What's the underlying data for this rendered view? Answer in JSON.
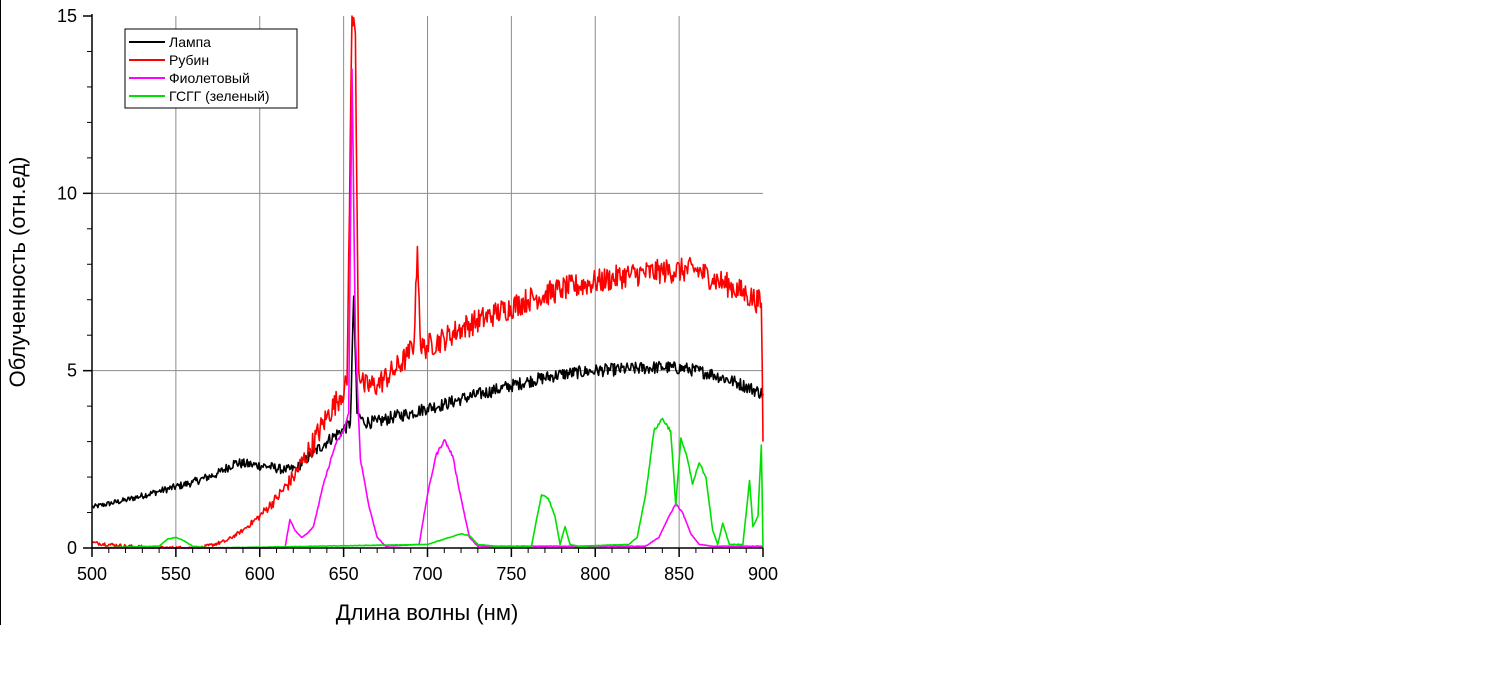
{
  "chart_data": {
    "type": "line",
    "title": "",
    "xlabel": "Длина волны (нм)",
    "ylabel": "Облученность (отн.ед)",
    "xlim": [
      500,
      900
    ],
    "ylim": [
      0,
      15
    ],
    "x_ticks": [
      "500",
      "550",
      "600",
      "650",
      "700",
      "750",
      "800",
      "850",
      "900"
    ],
    "y_ticks": [
      "0",
      "5",
      "10",
      "15"
    ],
    "grid": true,
    "legend_position": "top-left",
    "series": [
      {
        "name": "Лампа",
        "color": "#000000",
        "noise": 0.18,
        "points": [
          [
            500,
            1.15
          ],
          [
            520,
            1.35
          ],
          [
            540,
            1.6
          ],
          [
            560,
            1.85
          ],
          [
            575,
            2.1
          ],
          [
            585,
            2.4
          ],
          [
            595,
            2.35
          ],
          [
            605,
            2.3
          ],
          [
            615,
            2.2
          ],
          [
            622,
            2.25
          ],
          [
            630,
            2.6
          ],
          [
            640,
            3.0
          ],
          [
            650,
            3.35
          ],
          [
            654,
            3.5
          ],
          [
            656,
            7.1
          ],
          [
            658,
            3.8
          ],
          [
            662,
            3.55
          ],
          [
            670,
            3.55
          ],
          [
            680,
            3.7
          ],
          [
            690,
            3.8
          ],
          [
            700,
            3.95
          ],
          [
            710,
            4.05
          ],
          [
            720,
            4.2
          ],
          [
            740,
            4.45
          ],
          [
            760,
            4.7
          ],
          [
            780,
            4.9
          ],
          [
            800,
            5.0
          ],
          [
            820,
            5.05
          ],
          [
            840,
            5.1
          ],
          [
            855,
            5.05
          ],
          [
            870,
            4.9
          ],
          [
            885,
            4.65
          ],
          [
            900,
            4.35
          ]
        ]
      },
      {
        "name": "Рубин",
        "color": "#ff0000",
        "noise": 0.35,
        "points": [
          [
            500,
            0.15
          ],
          [
            510,
            0.1
          ],
          [
            520,
            0.05
          ],
          [
            540,
            0.0
          ],
          [
            565,
            0.0
          ],
          [
            580,
            0.2
          ],
          [
            590,
            0.5
          ],
          [
            600,
            0.9
          ],
          [
            610,
            1.4
          ],
          [
            620,
            2.0
          ],
          [
            630,
            2.8
          ],
          [
            640,
            3.7
          ],
          [
            648,
            4.3
          ],
          [
            652,
            4.6
          ],
          [
            655,
            15.0
          ],
          [
            657,
            14.5
          ],
          [
            659,
            5.0
          ],
          [
            662,
            4.55
          ],
          [
            670,
            4.6
          ],
          [
            680,
            5.0
          ],
          [
            688,
            5.4
          ],
          [
            692,
            5.8
          ],
          [
            694,
            8.5
          ],
          [
            696,
            5.6
          ],
          [
            700,
            5.7
          ],
          [
            710,
            5.9
          ],
          [
            720,
            6.2
          ],
          [
            740,
            6.6
          ],
          [
            760,
            7.0
          ],
          [
            780,
            7.3
          ],
          [
            800,
            7.5
          ],
          [
            820,
            7.7
          ],
          [
            840,
            7.8
          ],
          [
            860,
            7.85
          ],
          [
            870,
            7.6
          ],
          [
            880,
            7.4
          ],
          [
            890,
            7.15
          ],
          [
            899,
            6.9
          ],
          [
            900,
            3.0
          ]
        ]
      },
      {
        "name": "Фиолетовый",
        "color": "#ff00ff",
        "noise": 0.05,
        "points": [
          [
            500,
            0.0
          ],
          [
            615,
            0.0
          ],
          [
            618,
            0.8
          ],
          [
            621,
            0.5
          ],
          [
            625,
            0.3
          ],
          [
            628,
            0.4
          ],
          [
            632,
            0.6
          ],
          [
            638,
            1.8
          ],
          [
            645,
            2.9
          ],
          [
            650,
            3.3
          ],
          [
            653,
            3.8
          ],
          [
            655,
            13.5
          ],
          [
            657,
            6.0
          ],
          [
            660,
            2.5
          ],
          [
            665,
            1.2
          ],
          [
            670,
            0.3
          ],
          [
            675,
            0.05
          ],
          [
            695,
            0.1
          ],
          [
            700,
            1.5
          ],
          [
            705,
            2.6
          ],
          [
            710,
            3.05
          ],
          [
            715,
            2.6
          ],
          [
            720,
            1.4
          ],
          [
            725,
            0.3
          ],
          [
            730,
            0.05
          ],
          [
            830,
            0.05
          ],
          [
            838,
            0.3
          ],
          [
            843,
            0.8
          ],
          [
            848,
            1.25
          ],
          [
            852,
            1.0
          ],
          [
            857,
            0.4
          ],
          [
            862,
            0.1
          ],
          [
            870,
            0.05
          ],
          [
            900,
            0.05
          ]
        ]
      },
      {
        "name": "ГСГГ (зеленый)",
        "color": "#00e000",
        "noise": 0.05,
        "points": [
          [
            500,
            0.0
          ],
          [
            540,
            0.05
          ],
          [
            545,
            0.25
          ],
          [
            550,
            0.3
          ],
          [
            555,
            0.2
          ],
          [
            560,
            0.05
          ],
          [
            570,
            0.0
          ],
          [
            700,
            0.1
          ],
          [
            710,
            0.25
          ],
          [
            720,
            0.4
          ],
          [
            725,
            0.35
          ],
          [
            730,
            0.1
          ],
          [
            740,
            0.05
          ],
          [
            762,
            0.05
          ],
          [
            765,
            0.8
          ],
          [
            768,
            1.5
          ],
          [
            772,
            1.4
          ],
          [
            776,
            0.9
          ],
          [
            779,
            0.1
          ],
          [
            782,
            0.6
          ],
          [
            785,
            0.1
          ],
          [
            790,
            0.05
          ],
          [
            820,
            0.1
          ],
          [
            825,
            0.3
          ],
          [
            830,
            1.5
          ],
          [
            835,
            3.3
          ],
          [
            840,
            3.65
          ],
          [
            845,
            3.3
          ],
          [
            848,
            1.2
          ],
          [
            851,
            3.1
          ],
          [
            855,
            2.5
          ],
          [
            858,
            1.8
          ],
          [
            862,
            2.4
          ],
          [
            866,
            2.0
          ],
          [
            870,
            0.5
          ],
          [
            873,
            0.1
          ],
          [
            876,
            0.7
          ],
          [
            880,
            0.1
          ],
          [
            888,
            0.1
          ],
          [
            892,
            1.9
          ],
          [
            894,
            0.6
          ],
          [
            897,
            0.9
          ],
          [
            899,
            2.9
          ],
          [
            900,
            0.0
          ]
        ]
      }
    ]
  }
}
